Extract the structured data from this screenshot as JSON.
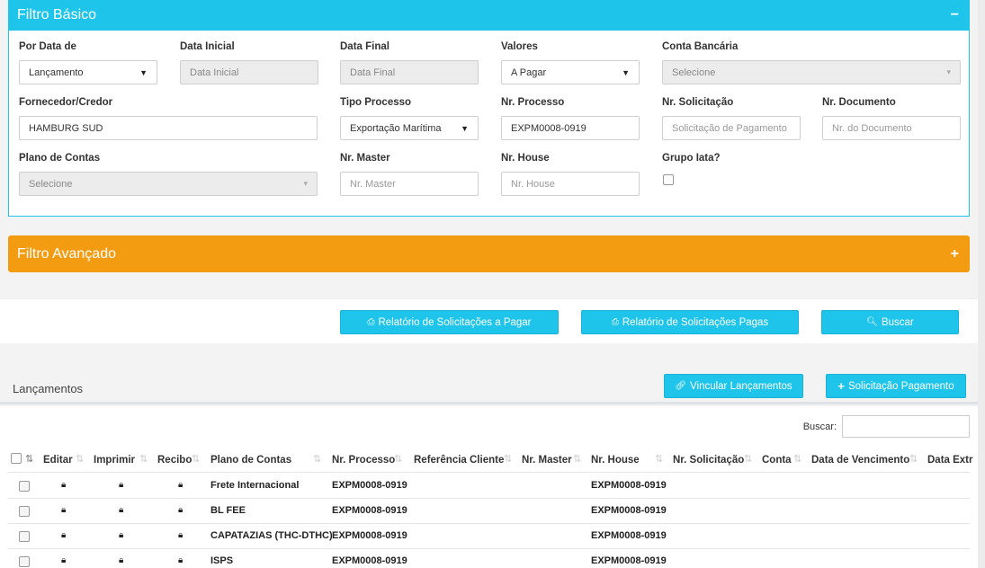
{
  "basic_filter": {
    "title": "Filtro Básico",
    "toggle": "−",
    "fields": {
      "por_data": {
        "label": "Por Data de",
        "value": "Lançamento"
      },
      "data_inicial": {
        "label": "Data Inicial",
        "placeholder": "Data Inicial"
      },
      "data_final": {
        "label": "Data Final",
        "placeholder": "Data Final"
      },
      "valores": {
        "label": "Valores",
        "value": "A Pagar"
      },
      "conta_bancaria": {
        "label": "Conta Bancária",
        "placeholder": "Selecione"
      },
      "fornecedor": {
        "label": "Fornecedor/Credor",
        "value": "HAMBURG SUD"
      },
      "tipo_processo": {
        "label": "Tipo Processo",
        "value": "Exportação Marítima"
      },
      "nr_processo": {
        "label": "Nr. Processo",
        "value": "EXPM0008-0919"
      },
      "nr_solicitacao": {
        "label": "Nr. Solicitação",
        "placeholder": "Solicitação de Pagamento"
      },
      "nr_documento": {
        "label": "Nr. Documento",
        "placeholder": "Nr. do Documento"
      },
      "plano_contas": {
        "label": "Plano de Contas",
        "placeholder": "Selecione"
      },
      "nr_master": {
        "label": "Nr. Master",
        "placeholder": "Nr. Master"
      },
      "nr_house": {
        "label": "Nr. House",
        "placeholder": "Nr. House"
      },
      "grupo_iata": {
        "label": "Grupo Iata?",
        "checked": false
      }
    }
  },
  "advanced_filter": {
    "title": "Filtro Avançado",
    "toggle": "+"
  },
  "actions": {
    "relatorio_pagar": "Relatório de Solicitações a Pagar",
    "relatorio_pagas": "Relatório de Solicitações Pagas",
    "buscar": "Buscar"
  },
  "list": {
    "title": "Lançamentos",
    "vincular": "Vincular Lançamentos",
    "solicitacao": "Solicitação Pagamento",
    "search_label": "Buscar:",
    "columns": [
      "Editar",
      "Imprimir",
      "Recibo",
      "Plano de Contas",
      "Nr. Processo",
      "Referência Cliente",
      "Nr. Master",
      "Nr. House",
      "Nr. Solicitação",
      "Conta",
      "Data de Vencimento",
      "Data Extr"
    ],
    "rows": [
      {
        "plano": "Frete Internacional",
        "processo": "EXPM0008-0919",
        "house": "EXPM0008-0919"
      },
      {
        "plano": "BL FEE",
        "processo": "EXPM0008-0919",
        "house": "EXPM0008-0919"
      },
      {
        "plano": "CAPATAZIAS (THC-DTHC)",
        "processo": "EXPM0008-0919",
        "house": "EXPM0008-0919"
      },
      {
        "plano": "ISPS",
        "processo": "EXPM0008-0919",
        "house": "EXPM0008-0919"
      }
    ]
  },
  "colors": {
    "primary": "#1ec4ea",
    "warning": "#f39c12"
  }
}
